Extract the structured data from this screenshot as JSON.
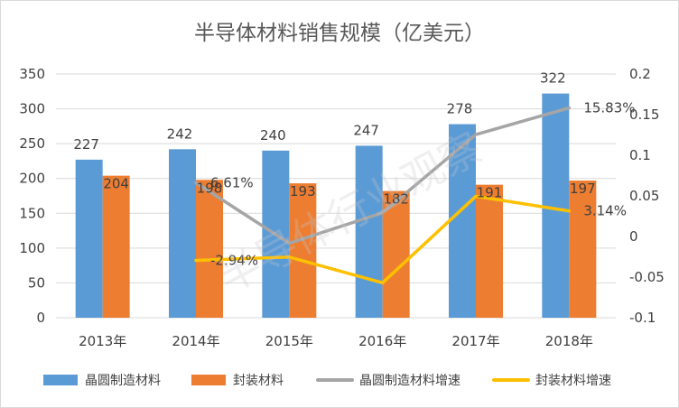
{
  "chart_data": {
    "type": "bar",
    "title": "半导体材料销售规模（亿美元）",
    "categories": [
      "2013年",
      "2014年",
      "2015年",
      "2016年",
      "2017年",
      "2018年"
    ],
    "y_left": {
      "ticks": [
        "0",
        "50",
        "100",
        "150",
        "200",
        "250",
        "300",
        "350"
      ],
      "range": [
        0,
        350
      ]
    },
    "y_right": {
      "ticks": [
        "-0.1",
        "-0.05",
        "0",
        "0.05",
        "0.1",
        "0.15",
        "0.2"
      ],
      "range": [
        -0.1,
        0.2
      ]
    },
    "series": [
      {
        "name": "晶圆制造材料",
        "kind": "bar",
        "axis": "left",
        "color": "#5b9bd5",
        "values": [
          227,
          242,
          240,
          247,
          278,
          322
        ],
        "labels": [
          "227",
          "242",
          "240",
          "247",
          "278",
          "322"
        ]
      },
      {
        "name": "封装材料",
        "kind": "bar",
        "axis": "left",
        "color": "#ed7d31",
        "values": [
          204,
          198,
          193,
          182,
          191,
          197
        ],
        "labels": [
          "204",
          "198",
          "193",
          "182",
          "191",
          "197"
        ]
      },
      {
        "name": "晶圆制造材料增速",
        "kind": "line",
        "axis": "right",
        "color": "#a5a5a5",
        "values": [
          null,
          0.0661,
          -0.0083,
          0.0292,
          0.1255,
          0.1583
        ],
        "labels": [
          "",
          "6.61%",
          "",
          "",
          "",
          "15.83%"
        ]
      },
      {
        "name": "封装材料增速",
        "kind": "line",
        "axis": "right",
        "color": "#ffc000",
        "values": [
          null,
          -0.0294,
          -0.0253,
          -0.057,
          0.0495,
          0.0314
        ],
        "labels": [
          "",
          "-2.94%",
          "",
          "",
          "",
          "3.14%"
        ]
      }
    ],
    "legend_position": "bottom",
    "grid": true
  },
  "watermark": "半导体行业观察"
}
